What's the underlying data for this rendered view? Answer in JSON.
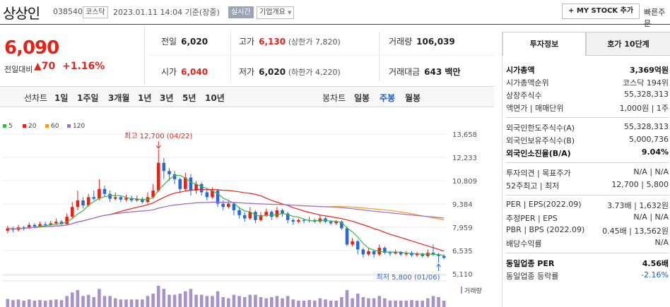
{
  "header": {
    "name": "상상인",
    "code": "038540",
    "market": "코스닥",
    "time": "2023.01.11 14:04 기준(장중)",
    "live": "실시간",
    "company_info": "기업개요",
    "mystock": "MY STOCK 추가",
    "quick": "빠른주문"
  },
  "price": {
    "current": "6,090",
    "label": "전일대비",
    "change": "70",
    "change_pct": "+1.16%"
  },
  "stats": {
    "prev_label": "전일",
    "prev": "6,020",
    "high_label": "고가",
    "high": "6,130",
    "high_limit": "(상한가 7,820)",
    "volume_label": "거래량",
    "volume": "106,039",
    "open_label": "시가",
    "open": "6,040",
    "low_label": "저가",
    "low": "6,020",
    "low_limit": "(하한가 4,220)",
    "amount_label": "거래대금",
    "amount": "643 백만"
  },
  "toolbar": {
    "line_label": "선차트",
    "line_ranges": [
      "1일",
      "1주일",
      "3개월",
      "1년",
      "3년",
      "5년",
      "10년"
    ],
    "candle_label": "봉차트",
    "candle_ranges": [
      "일봉",
      "주봉",
      "월봉"
    ],
    "candle_active": "주봉"
  },
  "legend": [
    {
      "label": "5",
      "color": "#3bb54a"
    },
    {
      "label": "20",
      "color": "#e2231a"
    },
    {
      "label": "60",
      "color": "#f39a1f"
    },
    {
      "label": "120",
      "color": "#9b6fd0"
    }
  ],
  "chart_data": {
    "type": "candlestick",
    "y_ticks": [
      "13,658",
      "12,233",
      "10,809",
      "9,384",
      "7,959",
      "6,535",
      "5,110"
    ],
    "ylim": [
      5110,
      13658
    ],
    "annot_high": "최고 12,700 (04/22)",
    "annot_low": "최저 5,800 (01/06)",
    "volume_label": "거래량",
    "candles": [
      [
        7750,
        7900,
        8050,
        7600
      ],
      [
        7900,
        7800,
        8000,
        7650
      ],
      [
        7800,
        7950,
        8100,
        7700
      ],
      [
        7950,
        7900,
        8050,
        7750
      ],
      [
        7900,
        8100,
        8250,
        7850
      ],
      [
        8100,
        8000,
        8200,
        7900
      ],
      [
        8000,
        8150,
        8300,
        7950
      ],
      [
        8150,
        8100,
        8300,
        8000
      ],
      [
        8100,
        8200,
        8350,
        8000
      ],
      [
        8200,
        8300,
        8500,
        8100
      ],
      [
        8300,
        8150,
        8400,
        8050
      ],
      [
        8150,
        8600,
        8800,
        8100
      ],
      [
        8600,
        9200,
        9500,
        8500
      ],
      [
        9200,
        9600,
        10200,
        9000
      ],
      [
        9600,
        9300,
        9800,
        9100
      ],
      [
        9300,
        9800,
        10000,
        9200
      ],
      [
        9800,
        9700,
        10200,
        9600
      ],
      [
        9700,
        10300,
        10900,
        9600
      ],
      [
        10300,
        10000,
        10500,
        9800
      ],
      [
        10000,
        9700,
        10200,
        9500
      ],
      [
        9700,
        9800,
        10100,
        9600
      ],
      [
        9800,
        9650,
        9900,
        9500
      ],
      [
        9650,
        9750,
        9950,
        9550
      ],
      [
        9750,
        9600,
        9900,
        9500
      ],
      [
        9600,
        9700,
        9900,
        9500
      ],
      [
        9700,
        9500,
        9800,
        9400
      ],
      [
        9500,
        9800,
        10100,
        9400
      ],
      [
        9800,
        10200,
        10600,
        9700
      ],
      [
        10200,
        11900,
        12700,
        10100
      ],
      [
        11900,
        11400,
        12200,
        10900
      ],
      [
        11400,
        11200,
        11600,
        10800
      ],
      [
        11200,
        10900,
        11400,
        10600
      ],
      [
        10900,
        10300,
        11000,
        10100
      ],
      [
        10300,
        11000,
        11300,
        10200
      ],
      [
        11000,
        10200,
        11200,
        9900
      ],
      [
        10200,
        10600,
        10800,
        10000
      ],
      [
        10600,
        10100,
        10700,
        9900
      ],
      [
        10100,
        9800,
        10300,
        9600
      ],
      [
        9800,
        10200,
        10400,
        9700
      ],
      [
        10200,
        9400,
        10300,
        9200
      ],
      [
        9400,
        9200,
        9600,
        9000
      ],
      [
        9200,
        9400,
        9600,
        9100
      ],
      [
        9400,
        9000,
        9500,
        8700
      ],
      [
        9000,
        8700,
        9200,
        8500
      ],
      [
        8700,
        8500,
        8900,
        8300
      ],
      [
        8500,
        8900,
        9200,
        8400
      ],
      [
        8900,
        8400,
        9000,
        8200
      ],
      [
        8400,
        8700,
        8900,
        8300
      ],
      [
        8700,
        8900,
        9100,
        8600
      ],
      [
        8900,
        8600,
        9000,
        8400
      ],
      [
        8600,
        9000,
        9200,
        8500
      ],
      [
        9000,
        8800,
        9100,
        8600
      ],
      [
        8800,
        8400,
        8900,
        8200
      ],
      [
        8400,
        8300,
        8500,
        8100
      ],
      [
        8300,
        8400,
        8500,
        8200
      ],
      [
        8400,
        8350,
        8500,
        8200
      ],
      [
        8350,
        8400,
        8600,
        8250
      ],
      [
        8400,
        8300,
        8500,
        8200
      ],
      [
        8300,
        8500,
        8700,
        8200
      ],
      [
        8500,
        8300,
        8600,
        8200
      ],
      [
        8300,
        8200,
        8400,
        8100
      ],
      [
        8200,
        8300,
        8400,
        8100
      ],
      [
        8300,
        7900,
        8400,
        7800
      ],
      [
        7900,
        6900,
        8000,
        6800
      ],
      [
        6900,
        7100,
        7300,
        6800
      ],
      [
        7100,
        6600,
        7200,
        6300
      ],
      [
        6600,
        6300,
        6700,
        6100
      ],
      [
        6300,
        6500,
        6700,
        6200
      ],
      [
        6500,
        6300,
        6600,
        6100
      ],
      [
        6300,
        6700,
        6900,
        6200
      ],
      [
        6700,
        6400,
        6800,
        6300
      ],
      [
        6400,
        6350,
        6500,
        6200
      ],
      [
        6350,
        6450,
        6600,
        6300
      ],
      [
        6450,
        6300,
        6500,
        6200
      ],
      [
        6300,
        6400,
        6500,
        6200
      ],
      [
        6400,
        6250,
        6500,
        6150
      ],
      [
        6250,
        6350,
        6450,
        6150
      ],
      [
        6350,
        6200,
        6400,
        6100
      ],
      [
        6200,
        6400,
        6600,
        6100
      ],
      [
        6400,
        6300,
        6900,
        6200
      ],
      [
        6300,
        6200,
        6400,
        5800
      ],
      [
        6200,
        6090,
        6300,
        6000
      ]
    ]
  },
  "tabs": [
    "투자정보",
    "호가 10단계"
  ],
  "invest": {
    "rows1": [
      {
        "k": "시가총액",
        "v": "3,369억원",
        "bold": true
      },
      {
        "k": "시가총액순위",
        "v": "코스닥 194위"
      },
      {
        "k": "상장주식수",
        "v": "55,328,313"
      },
      {
        "k": "액면가 | 매매단위",
        "v": "1,000원 | 1주"
      }
    ],
    "rows2": [
      {
        "k": "외국인한도주식수(A)",
        "v": "55,328,313"
      },
      {
        "k": "외국인보유주식수(B)",
        "v": "5,000,736"
      },
      {
        "k": "외국인소진율(B/A)",
        "v": "9.04%",
        "bold": true
      }
    ],
    "rows3": [
      {
        "k": "투자의견 | 목표주가",
        "v": "N/A | N/A"
      },
      {
        "k": "52주최고 | 최저",
        "v": "12,700 | 5,800"
      }
    ],
    "rows4": [
      {
        "k": "PER | EPS(2022.09)",
        "v": "3.73배 | 1,632원"
      },
      {
        "k": "추정PER | EPS",
        "v": "N/A | N/A"
      },
      {
        "k": "PBR | BPS (2022.09)",
        "v": "0.45배 | 13,562원"
      },
      {
        "k": "배당수익률",
        "v": "N/A"
      }
    ],
    "rows5": [
      {
        "k": "동일업종 PER",
        "v": "4.56배",
        "bold": true
      },
      {
        "k": "동일업종 등락률",
        "v": "-2.16%",
        "blue": true
      }
    ]
  }
}
